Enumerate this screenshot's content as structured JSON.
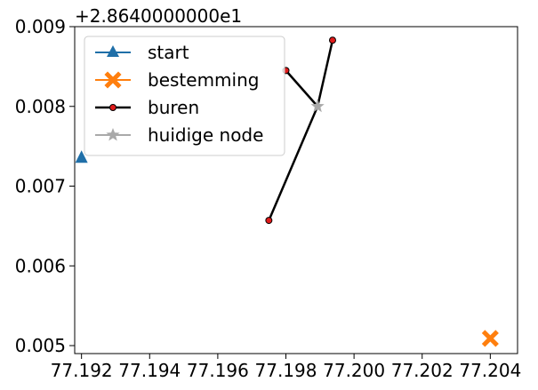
{
  "chart_data": {
    "type": "line",
    "title": "",
    "xlabel": "",
    "ylabel": "",
    "y_offset_label": "+2.8640000000e1",
    "xlim": [
      77.1918,
      77.2048
    ],
    "ylim": [
      0.0049,
      0.009
    ],
    "x_ticks": [
      77.192,
      77.194,
      77.196,
      77.198,
      77.2,
      77.202,
      77.204
    ],
    "x_tick_labels": [
      "77.192",
      "77.194",
      "77.196",
      "77.198",
      "77.200",
      "77.202",
      "77.204"
    ],
    "y_ticks": [
      0.005,
      0.006,
      0.007,
      0.008,
      0.009
    ],
    "y_tick_labels": [
      "0.005",
      "0.006",
      "0.007",
      "0.008",
      "0.009"
    ],
    "grid": false,
    "legend_position": "top-left",
    "series": [
      {
        "name": "start",
        "style": "marker-triangle",
        "color": "#1f6fa8",
        "points": [
          [
            77.192,
            0.00736
          ]
        ]
      },
      {
        "name": "bestemming",
        "style": "marker-x",
        "color": "#ff7f0e",
        "points": [
          [
            77.204,
            0.00509
          ]
        ]
      },
      {
        "name": "buren",
        "style": "line-dot",
        "color": "#000000",
        "marker_color": "#e01b1b",
        "segments": [
          [
            [
              77.1975,
              0.00657
            ],
            [
              77.19893,
              0.008
            ]
          ],
          [
            [
              77.198,
              0.00845
            ],
            [
              77.19893,
              0.008
            ]
          ],
          [
            [
              77.19937,
              0.00883
            ],
            [
              77.19893,
              0.008
            ]
          ]
        ],
        "points": [
          [
            77.1975,
            0.00657
          ],
          [
            77.198,
            0.00845
          ],
          [
            77.19937,
            0.00883
          ]
        ]
      },
      {
        "name": "huidige node",
        "style": "marker-star",
        "color": "#a9a9a9",
        "points": [
          [
            77.19893,
            0.008
          ]
        ]
      }
    ]
  }
}
